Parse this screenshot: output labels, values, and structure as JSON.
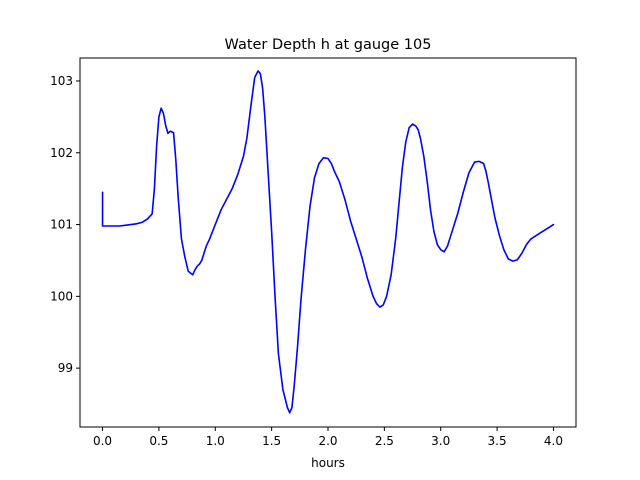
{
  "chart_data": {
    "type": "line",
    "title": "Water Depth h at gauge 105",
    "xlabel": "hours",
    "ylabel": "",
    "xlim": [
      -0.2,
      4.2
    ],
    "ylim": [
      98.18,
      103.32
    ],
    "xticks": [
      0.0,
      0.5,
      1.0,
      1.5,
      2.0,
      2.5,
      3.0,
      3.5,
      4.0
    ],
    "xtick_labels": [
      "0.0",
      "0.5",
      "1.0",
      "1.5",
      "2.0",
      "2.5",
      "3.0",
      "3.5",
      "4.0"
    ],
    "yticks": [
      99,
      100,
      101,
      102,
      103
    ],
    "ytick_labels": [
      "99",
      "100",
      "101",
      "102",
      "103"
    ],
    "grid": false,
    "legend": "none",
    "line_color": "#0000ff",
    "series": [
      {
        "x": [
          0.0,
          0.0,
          0.05,
          0.1,
          0.15,
          0.2,
          0.25,
          0.3,
          0.35,
          0.4,
          0.44,
          0.46,
          0.48,
          0.5,
          0.52,
          0.54,
          0.56,
          0.58,
          0.6,
          0.63,
          0.65,
          0.67,
          0.7,
          0.73,
          0.76,
          0.8,
          0.82,
          0.84,
          0.86,
          0.88,
          0.9,
          0.92,
          0.95,
          1.0,
          1.05,
          1.1,
          1.15,
          1.2,
          1.25,
          1.28,
          1.32,
          1.35,
          1.38,
          1.4,
          1.42,
          1.44,
          1.47,
          1.5,
          1.53,
          1.56,
          1.6,
          1.64,
          1.66,
          1.68,
          1.7,
          1.73,
          1.76,
          1.8,
          1.84,
          1.88,
          1.92,
          1.96,
          2.0,
          2.03,
          2.06,
          2.1,
          2.15,
          2.2,
          2.25,
          2.3,
          2.35,
          2.4,
          2.43,
          2.46,
          2.49,
          2.52,
          2.56,
          2.6,
          2.63,
          2.66,
          2.69,
          2.72,
          2.75,
          2.78,
          2.8,
          2.82,
          2.85,
          2.88,
          2.91,
          2.94,
          2.97,
          3.0,
          3.03,
          3.06,
          3.09,
          3.12,
          3.15,
          3.2,
          3.25,
          3.3,
          3.34,
          3.38,
          3.4,
          3.42,
          3.45,
          3.48,
          3.52,
          3.56,
          3.6,
          3.64,
          3.68,
          3.72,
          3.76,
          3.8,
          3.85,
          3.9,
          3.95,
          4.0
        ],
        "y": [
          101.45,
          100.98,
          100.98,
          100.98,
          100.98,
          100.99,
          101.0,
          101.01,
          101.03,
          101.08,
          101.15,
          101.5,
          102.1,
          102.5,
          102.62,
          102.55,
          102.38,
          102.27,
          102.3,
          102.28,
          101.9,
          101.4,
          100.8,
          100.55,
          100.35,
          100.3,
          100.37,
          100.42,
          100.45,
          100.5,
          100.6,
          100.7,
          100.8,
          101.0,
          101.2,
          101.35,
          101.5,
          101.7,
          101.95,
          102.2,
          102.7,
          103.05,
          103.14,
          103.1,
          102.9,
          102.5,
          101.7,
          100.9,
          100.0,
          99.2,
          98.7,
          98.45,
          98.38,
          98.45,
          98.75,
          99.3,
          99.95,
          100.65,
          101.25,
          101.65,
          101.85,
          101.93,
          101.92,
          101.85,
          101.73,
          101.6,
          101.35,
          101.05,
          100.8,
          100.55,
          100.25,
          100.0,
          99.9,
          99.85,
          99.88,
          100.0,
          100.3,
          100.8,
          101.3,
          101.8,
          102.15,
          102.35,
          102.4,
          102.37,
          102.32,
          102.2,
          101.95,
          101.6,
          101.2,
          100.9,
          100.72,
          100.65,
          100.62,
          100.7,
          100.85,
          101.0,
          101.15,
          101.45,
          101.72,
          101.87,
          101.88,
          101.85,
          101.75,
          101.6,
          101.35,
          101.1,
          100.85,
          100.65,
          100.52,
          100.49,
          100.51,
          100.6,
          100.72,
          100.8,
          100.85,
          100.9,
          100.95,
          101.0
        ]
      }
    ]
  }
}
